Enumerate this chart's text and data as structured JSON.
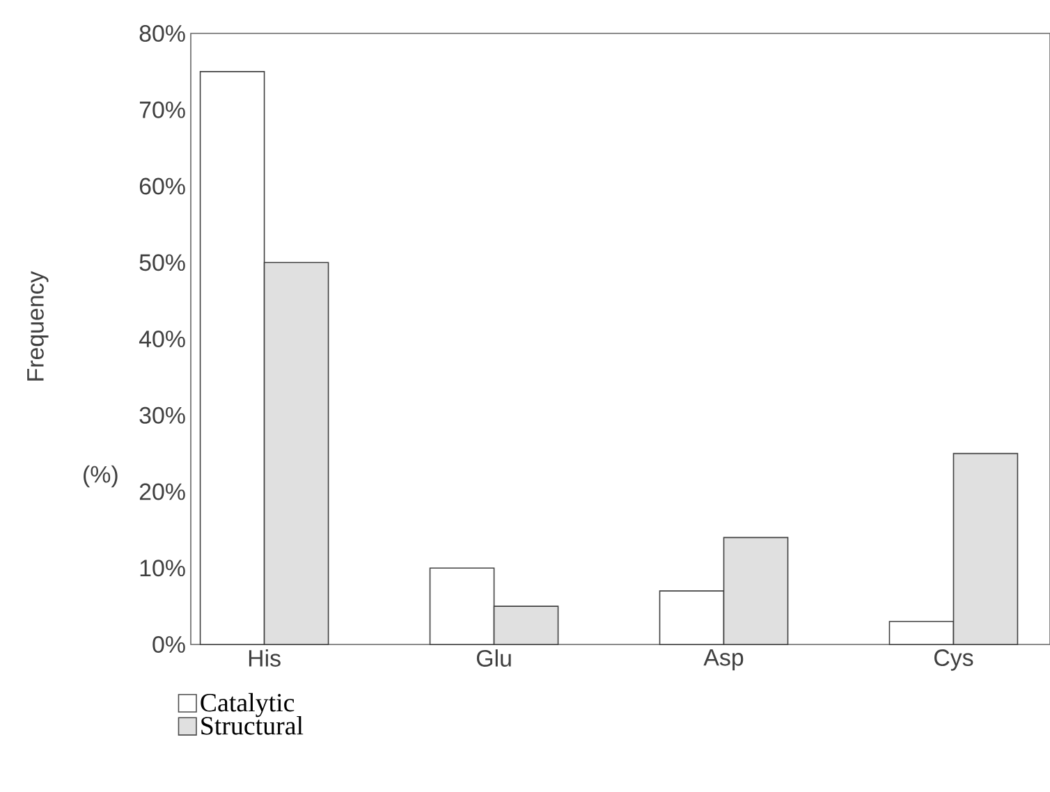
{
  "chart_data": {
    "type": "bar",
    "ylabel": "Frequency",
    "annotations": [
      "(%)"
    ],
    "categories": [
      "His",
      "Glu",
      "Asp",
      "Cys"
    ],
    "series": [
      {
        "name": "Catalytic",
        "color": "#ffffff",
        "values": [
          75,
          10,
          7,
          3
        ]
      },
      {
        "name": "Structural",
        "color": "#e0e0e0",
        "values": [
          50,
          5,
          14,
          25
        ]
      }
    ],
    "ylim": [
      0,
      80
    ],
    "yticks": [
      {
        "value": 0,
        "label": "0%"
      },
      {
        "value": 10,
        "label": "10%"
      },
      {
        "value": 20,
        "label": "20%"
      },
      {
        "value": 30,
        "label": "30%"
      },
      {
        "value": 40,
        "label": "40%"
      },
      {
        "value": 50,
        "label": "50%"
      },
      {
        "value": 60,
        "label": "60%"
      },
      {
        "value": 70,
        "label": "70%"
      },
      {
        "value": 80,
        "label": "80%"
      }
    ],
    "legend": "bottom left"
  }
}
